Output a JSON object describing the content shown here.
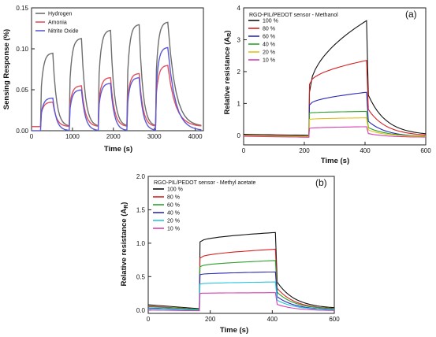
{
  "chart_data": [
    {
      "type": "line",
      "xlabel": "Time (s)",
      "ylabel": "Sensing Response (%)",
      "xlim": [
        0,
        4200
      ],
      "ylim": [
        0,
        0.15
      ],
      "xticks": [
        0,
        1000,
        2000,
        3000,
        4000
      ],
      "yticks": [
        0.0,
        0.05,
        0.1,
        0.15
      ],
      "ytick_labels": [
        "0.00",
        "0.05",
        "0.10",
        "0.15"
      ],
      "legend_position": "top-left",
      "pulses": [
        {
          "on": 220,
          "off": 520
        },
        {
          "on": 920,
          "off": 1220
        },
        {
          "on": 1630,
          "off": 1930
        },
        {
          "on": 2330,
          "off": 2630
        },
        {
          "on": 3030,
          "off": 3330,
          "last": true
        }
      ],
      "series": [
        {
          "name": "Hydrogen",
          "color": "#6e6e6e",
          "baseline": 0.005,
          "plateaus": [
            0.095,
            0.113,
            0.123,
            0.13,
            0.133
          ]
        },
        {
          "name": "Amonia",
          "color": "#e0525e",
          "baseline": 0.005,
          "plateaus": [
            0.035,
            0.055,
            0.065,
            0.07,
            0.08
          ]
        },
        {
          "name": "Nitrite Oxide",
          "color": "#5a5ad8",
          "baseline": 0.0,
          "plateaus": [
            0.04,
            0.05,
            0.058,
            0.065,
            0.102
          ]
        }
      ]
    },
    {
      "type": "line",
      "panel": "(a)",
      "annotation": "RGO-PIL/PEDOT sensor - Methanol",
      "xlabel": "Time (s)",
      "ylabel": "Relative resistance (A",
      "ylabel_sub": "R",
      "ylabel_end": ")",
      "xlim": [
        0,
        600
      ],
      "ylim": [
        -0.3,
        4.0
      ],
      "xticks": [
        0,
        200,
        400,
        600
      ],
      "yticks": [
        0,
        1,
        2,
        3,
        4
      ],
      "exposure": {
        "on": 215,
        "off": 405
      },
      "legend_position": "top-left",
      "series": [
        {
          "name": "100 %",
          "color": "#111111",
          "baseline": 0.0,
          "start": 1.35,
          "end": 3.6
        },
        {
          "name": "80 %",
          "color": "#d62020",
          "baseline": -0.02,
          "start": 1.6,
          "end": 2.35
        },
        {
          "name": "60 %",
          "color": "#2a2ab8",
          "baseline": -0.05,
          "start": 0.95,
          "end": 1.35
        },
        {
          "name": "40 %",
          "color": "#2ca02c",
          "baseline": -0.03,
          "start": 0.7,
          "end": 0.75
        },
        {
          "name": "20 %",
          "color": "#e3c21a",
          "baseline": -0.04,
          "start": 0.5,
          "end": 0.55
        },
        {
          "name": "10 %",
          "color": "#d43fb0",
          "baseline": -0.06,
          "start": 0.22,
          "end": 0.27
        }
      ]
    },
    {
      "type": "line",
      "panel": "(b)",
      "annotation": "RGO-PIL/PEDOT sensor - Methyl acetate",
      "xlabel": "Time (s)",
      "ylabel": "Relative resistance (A",
      "ylabel_sub": "R",
      "ylabel_end": ")",
      "xlim": [
        0,
        600
      ],
      "ylim": [
        -0.05,
        2.0
      ],
      "xticks": [
        0,
        200,
        400,
        600
      ],
      "yticks": [
        0.0,
        0.5,
        1.0,
        1.5,
        2.0
      ],
      "ytick_labels": [
        "0.0",
        "0.5",
        "1.0",
        "1.5",
        "2.0"
      ],
      "exposure": {
        "on": 165,
        "off": 410
      },
      "legend_position": "top-left",
      "series": [
        {
          "name": "100 %",
          "color": "#111111",
          "baseline": 0.02,
          "start": 1.02,
          "end": 1.16
        },
        {
          "name": "80 %",
          "color": "#d62020",
          "baseline": 0.01,
          "start": 0.78,
          "end": 0.91
        },
        {
          "name": "60 %",
          "color": "#2ca02c",
          "baseline": 0.01,
          "start": 0.65,
          "end": 0.74
        },
        {
          "name": "40 %",
          "color": "#2a2ab8",
          "baseline": 0.0,
          "start": 0.53,
          "end": 0.57
        },
        {
          "name": "20 %",
          "color": "#26c6e0",
          "baseline": 0.0,
          "start": 0.39,
          "end": 0.42
        },
        {
          "name": "10 %",
          "color": "#d43fb0",
          "baseline": -0.01,
          "start": 0.25,
          "end": 0.26
        }
      ]
    }
  ]
}
